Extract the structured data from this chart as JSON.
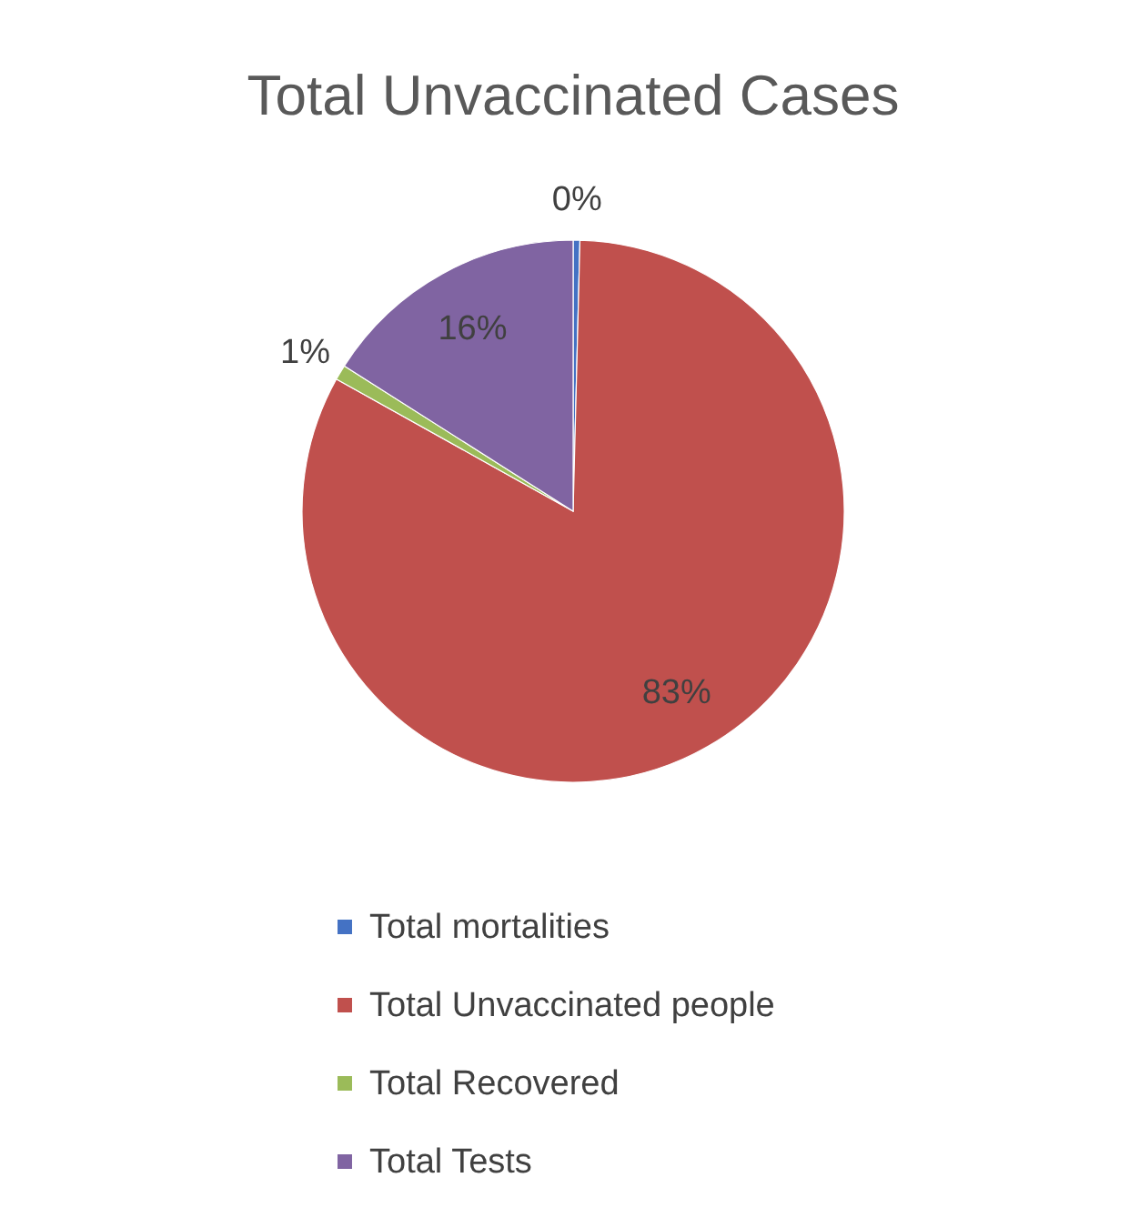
{
  "chart_data": {
    "type": "pie",
    "title": "Total Unvaccinated Cases",
    "categories": [
      "Total mortalities",
      "Total Unvaccinated people",
      "Total Recovered",
      "Total Tests"
    ],
    "values": [
      0.4,
      82.7,
      0.9,
      16
    ],
    "colors": [
      "#4472c4",
      "#c0504d",
      "#9bbb59",
      "#8064a2"
    ],
    "value_labels": [
      "0%",
      "83%",
      "1%",
      "16%"
    ],
    "legend": "bottom"
  }
}
